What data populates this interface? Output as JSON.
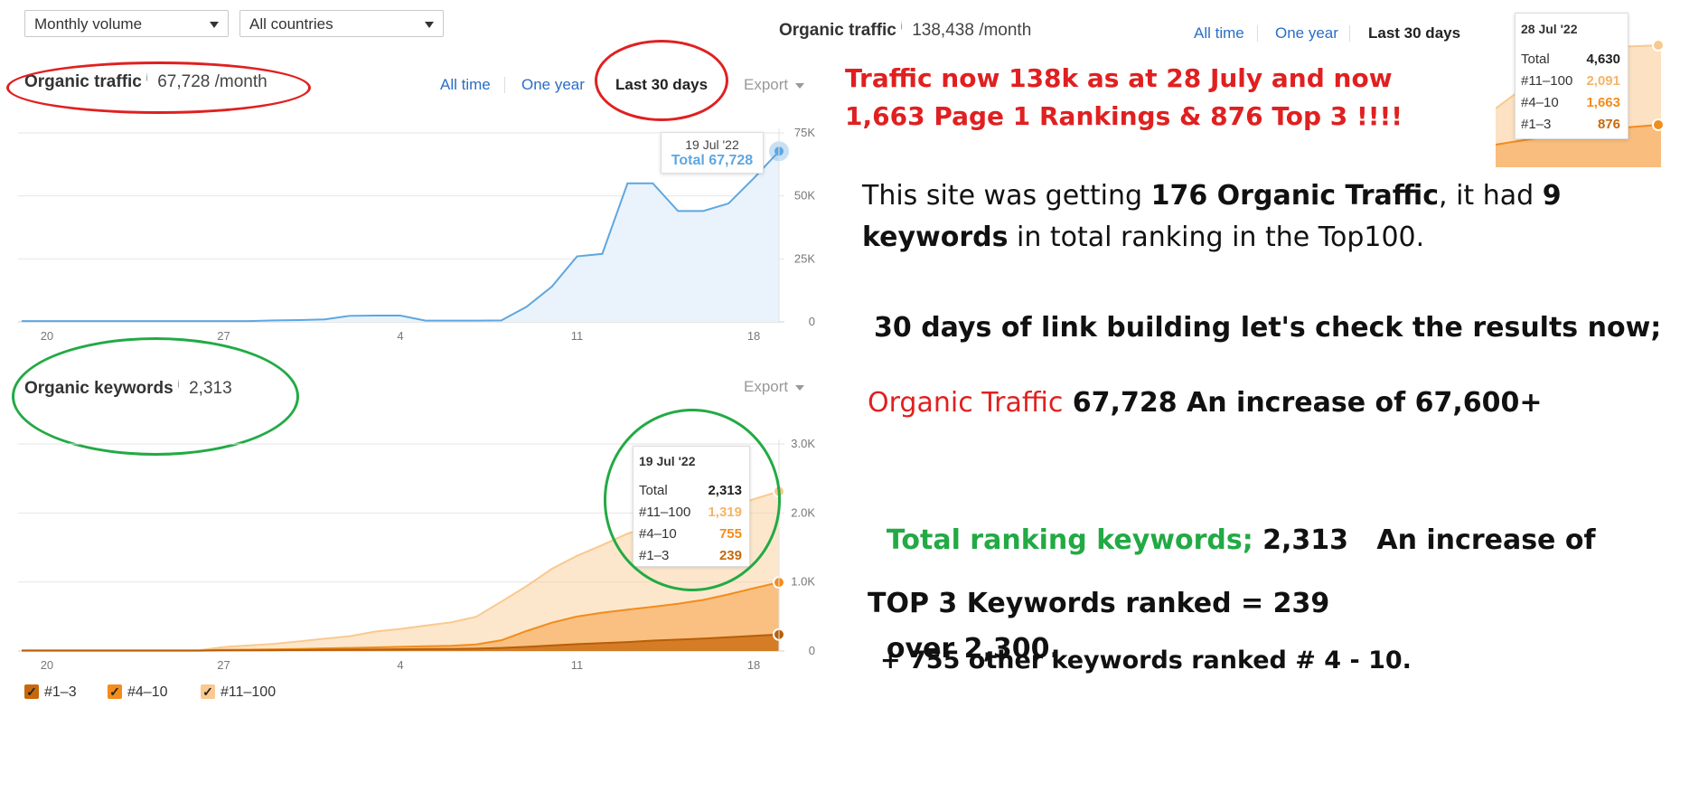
{
  "filters": {
    "volume": "Monthly volume",
    "countries": "All countries"
  },
  "top_right_header": {
    "title": "Organic traffic",
    "info": "i",
    "value": "138,438 /month",
    "ranges": [
      "All time",
      "One year",
      "Last 30 days"
    ],
    "active_range": "Last 30 days"
  },
  "inset_tooltip": {
    "date": "28 Jul '22",
    "rows": [
      {
        "label": "Total",
        "value": "4,630",
        "color": "#222222"
      },
      {
        "label": "#11–100",
        "value": "2,091",
        "color": "#f6b467"
      },
      {
        "label": "#4–10",
        "value": "1,663",
        "color": "#f28c1c"
      },
      {
        "label": "#1–3",
        "value": "876",
        "color": "#c8680b"
      }
    ]
  },
  "traffic_panel": {
    "title": "Organic traffic",
    "info": "i",
    "value": "67,728 /month",
    "ranges": [
      "All time",
      "One year",
      "Last 30 days"
    ],
    "active_range": "Last 30 days",
    "export_label": "Export",
    "tooltip": {
      "date": "19 Jul '22",
      "text": "Total 67,728"
    }
  },
  "keywords_panel": {
    "title": "Organic keywords",
    "info": "i",
    "value": "2,313",
    "export_label": "Export",
    "tooltip": {
      "date": "19 Jul '22",
      "rows": [
        {
          "label": "Total",
          "value": "2,313",
          "color": "#222222"
        },
        {
          "label": "#11–100",
          "value": "1,319",
          "color": "#f6b467"
        },
        {
          "label": "#4–10",
          "value": "755",
          "color": "#f28c1c"
        },
        {
          "label": "#1–3",
          "value": "239",
          "color": "#c8680b"
        }
      ]
    },
    "legend": [
      {
        "label": "#1–3",
        "color": "#c8680b"
      },
      {
        "label": "#4–10",
        "color": "#f28c1c"
      },
      {
        "label": "#11–100",
        "color": "#f9c98f"
      }
    ]
  },
  "chart_data": [
    {
      "type": "area",
      "title": "Organic traffic",
      "x": [
        "19 Jun",
        "20 Jun",
        "21 Jun",
        "22 Jun",
        "23 Jun",
        "24 Jun",
        "25 Jun",
        "26 Jun",
        "27 Jun",
        "28 Jun",
        "29 Jun",
        "30 Jun",
        "1 Jul",
        "2 Jul",
        "3 Jul",
        "4 Jul",
        "5 Jul",
        "6 Jul",
        "7 Jul",
        "8 Jul",
        "9 Jul",
        "10 Jul",
        "11 Jul",
        "12 Jul",
        "13 Jul",
        "14 Jul",
        "15 Jul",
        "16 Jul",
        "17 Jul",
        "18 Jul",
        "19 Jul"
      ],
      "series": [
        {
          "values": [
            300,
            300,
            300,
            300,
            300,
            300,
            300,
            300,
            300,
            300,
            600,
            700,
            1000,
            2400,
            2500,
            2500,
            500,
            500,
            500,
            600,
            6000,
            14000,
            26000,
            27000,
            55000,
            55000,
            44000,
            44000,
            47000,
            57000,
            67728
          ],
          "color": "#5ea7e0"
        }
      ],
      "xticks": [
        "20",
        "27",
        "4",
        "11",
        "18"
      ],
      "yticks": [
        "0",
        "25K",
        "50K",
        "75K"
      ],
      "ylim": [
        0,
        75000
      ]
    },
    {
      "type": "area",
      "title": "Organic keywords",
      "x": [
        "19 Jun",
        "20 Jun",
        "21 Jun",
        "22 Jun",
        "23 Jun",
        "24 Jun",
        "25 Jun",
        "26 Jun",
        "27 Jun",
        "28 Jun",
        "29 Jun",
        "30 Jun",
        "1 Jul",
        "2 Jul",
        "3 Jul",
        "4 Jul",
        "5 Jul",
        "6 Jul",
        "7 Jul",
        "8 Jul",
        "9 Jul",
        "10 Jul",
        "11 Jul",
        "12 Jul",
        "13 Jul",
        "14 Jul",
        "15 Jul",
        "16 Jul",
        "17 Jul",
        "18 Jul",
        "19 Jul"
      ],
      "series": [
        {
          "name": "#1–3",
          "values": [
            5,
            5,
            5,
            5,
            5,
            5,
            5,
            5,
            10,
            10,
            12,
            15,
            18,
            20,
            22,
            25,
            28,
            30,
            35,
            45,
            60,
            80,
            100,
            115,
            130,
            150,
            165,
            180,
            200,
            220,
            239
          ],
          "color": "#c8680b"
        },
        {
          "name": "#4–10",
          "values": [
            3,
            3,
            3,
            3,
            3,
            3,
            3,
            3,
            8,
            10,
            12,
            15,
            20,
            25,
            30,
            35,
            40,
            45,
            60,
            110,
            230,
            330,
            400,
            440,
            470,
            490,
            520,
            560,
            620,
            690,
            755
          ],
          "color": "#f28c1c"
        },
        {
          "name": "#11–100",
          "values": [
            2,
            2,
            2,
            2,
            2,
            2,
            2,
            2,
            40,
            60,
            80,
            110,
            140,
            170,
            230,
            260,
            300,
            340,
            400,
            560,
            650,
            780,
            880,
            980,
            1100,
            1170,
            1200,
            1230,
            1260,
            1290,
            1319
          ],
          "color": "#f9c98f"
        }
      ],
      "xticks": [
        "20",
        "27",
        "4",
        "11",
        "18"
      ],
      "yticks": [
        "0",
        "1.0K",
        "2.0K",
        "3.0K"
      ],
      "ylim": [
        0,
        3000
      ],
      "legend": "bottom-left"
    }
  ],
  "annotations": {
    "headline_line1": "Traffic now 138k as at 28 July and now",
    "headline_line2": "1,663 Page 1 Rankings & 876 Top 3 !!!!",
    "intro_a": "This site was getting ",
    "intro_b": "176 Organic Traffic",
    "intro_c": ", it had ",
    "intro_d": "9",
    "intro_e": "keywords",
    "intro_f": " in total ranking in the Top100.",
    "link_building": "30 days of link building let's check the results now;",
    "traffic_label": "Organic Traffic",
    "traffic_value": " 67,728 An increase of 67,600+",
    "keywords_label": "Total ranking keywords;",
    "keywords_value": " 2,313   An increase of",
    "keywords_value2": "over 2,300.",
    "top3": "TOP 3 Keywords ranked = 239",
    "other": "+ 755 other keywords ranked # 4 - 10."
  }
}
